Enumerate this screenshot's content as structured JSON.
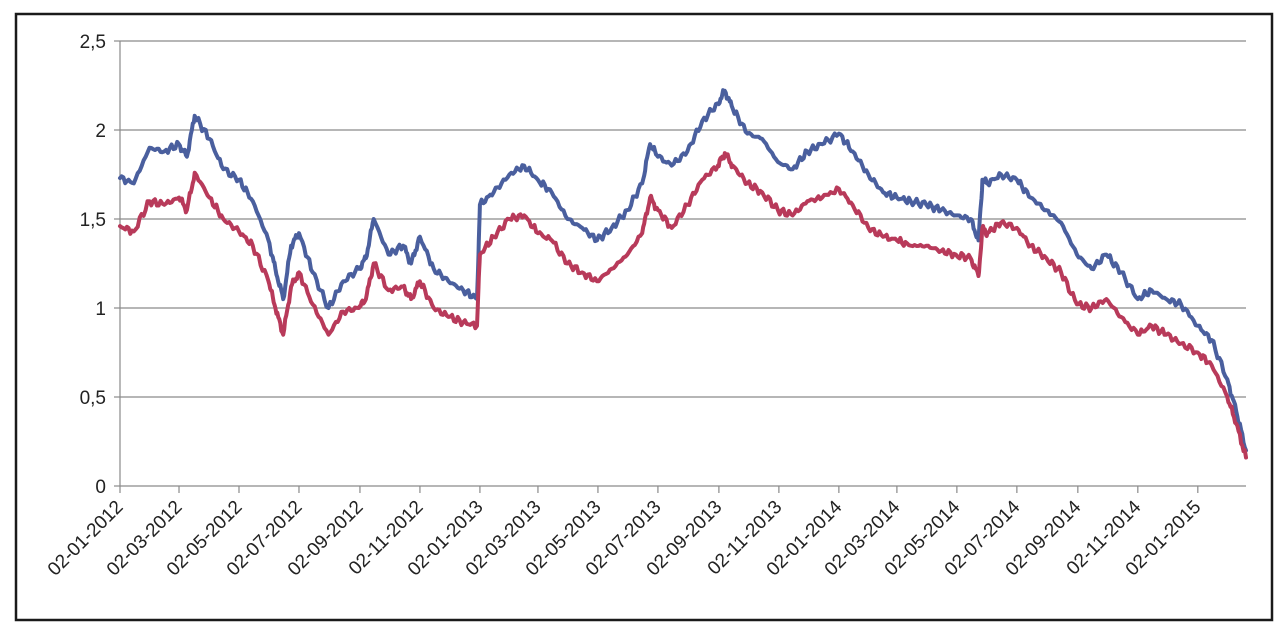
{
  "chart_data": {
    "type": "line",
    "title": "",
    "xlabel": "",
    "ylabel": "",
    "x_tick_labels": [
      "02-01-2012",
      "02-03-2012",
      "02-05-2012",
      "02-07-2012",
      "02-09-2012",
      "02-11-2012",
      "02-01-2013",
      "02-03-2013",
      "02-05-2013",
      "02-07-2013",
      "02-09-2013",
      "02-11-2013",
      "02-01-2014",
      "02-03-2014",
      "02-05-2014",
      "02-07-2014",
      "02-09-2014",
      "02-11-2014",
      "02-01-2015"
    ],
    "y_tick_labels": [
      "0",
      "0,5",
      "1",
      "1,5",
      "2",
      "2,5"
    ],
    "y_ticks": [
      0,
      0.5,
      1,
      1.5,
      2,
      2.5
    ],
    "ylim": [
      0,
      2.5
    ],
    "xlim": [
      "2012-01-02",
      "2015-02-20"
    ],
    "grid": "horizontal",
    "legend": "none",
    "series": [
      {
        "color": "#4a5f9e",
        "x": [
          "2012-01-02",
          "2012-01-16",
          "2012-02-01",
          "2012-02-16",
          "2012-03-02",
          "2012-03-10",
          "2012-03-18",
          "2012-04-02",
          "2012-04-16",
          "2012-05-02",
          "2012-05-16",
          "2012-06-01",
          "2012-06-08",
          "2012-06-16",
          "2012-06-24",
          "2012-07-02",
          "2012-07-16",
          "2012-08-01",
          "2012-08-16",
          "2012-09-01",
          "2012-09-08",
          "2012-09-16",
          "2012-10-01",
          "2012-10-16",
          "2012-10-24",
          "2012-11-02",
          "2012-11-16",
          "2012-12-01",
          "2012-12-16",
          "2012-12-30",
          "2013-01-02",
          "2013-01-16",
          "2013-02-01",
          "2013-02-16",
          "2013-03-02",
          "2013-03-16",
          "2013-04-01",
          "2013-04-16",
          "2013-05-01",
          "2013-05-16",
          "2013-06-01",
          "2013-06-16",
          "2013-06-24",
          "2013-07-02",
          "2013-07-16",
          "2013-08-01",
          "2013-08-16",
          "2013-09-01",
          "2013-09-08",
          "2013-09-16",
          "2013-10-01",
          "2013-10-16",
          "2013-11-01",
          "2013-11-16",
          "2013-12-01",
          "2013-12-16",
          "2014-01-02",
          "2014-01-16",
          "2014-02-01",
          "2014-02-16",
          "2014-03-02",
          "2014-03-16",
          "2014-04-01",
          "2014-04-16",
          "2014-05-01",
          "2014-05-16",
          "2014-05-24",
          "2014-05-28",
          "2014-06-02",
          "2014-06-16",
          "2014-07-02",
          "2014-07-16",
          "2014-08-01",
          "2014-08-16",
          "2014-09-01",
          "2014-09-16",
          "2014-10-01",
          "2014-10-16",
          "2014-11-02",
          "2014-11-16",
          "2014-12-01",
          "2014-12-16",
          "2015-01-02",
          "2015-01-16",
          "2015-02-01",
          "2015-02-10",
          "2015-02-20"
        ],
        "values": [
          1.73,
          1.7,
          1.9,
          1.88,
          1.92,
          1.85,
          2.08,
          1.95,
          1.78,
          1.72,
          1.6,
          1.38,
          1.22,
          1.05,
          1.35,
          1.42,
          1.2,
          1.0,
          1.15,
          1.22,
          1.28,
          1.5,
          1.3,
          1.35,
          1.25,
          1.4,
          1.22,
          1.15,
          1.1,
          1.05,
          1.58,
          1.65,
          1.75,
          1.8,
          1.72,
          1.65,
          1.5,
          1.45,
          1.38,
          1.45,
          1.55,
          1.7,
          1.92,
          1.85,
          1.8,
          1.88,
          2.05,
          2.15,
          2.22,
          2.12,
          1.98,
          1.95,
          1.82,
          1.78,
          1.88,
          1.92,
          1.98,
          1.88,
          1.75,
          1.65,
          1.62,
          1.6,
          1.58,
          1.55,
          1.52,
          1.5,
          1.38,
          1.72,
          1.7,
          1.75,
          1.72,
          1.62,
          1.55,
          1.48,
          1.3,
          1.22,
          1.3,
          1.2,
          1.05,
          1.1,
          1.05,
          1.02,
          0.9,
          0.82,
          0.6,
          0.42,
          0.2
        ]
      },
      {
        "color": "#b83a5a",
        "x": [
          "2012-01-02",
          "2012-01-16",
          "2012-02-01",
          "2012-02-16",
          "2012-03-02",
          "2012-03-10",
          "2012-03-18",
          "2012-04-02",
          "2012-04-16",
          "2012-05-02",
          "2012-05-16",
          "2012-06-01",
          "2012-06-08",
          "2012-06-16",
          "2012-06-24",
          "2012-07-02",
          "2012-07-16",
          "2012-08-01",
          "2012-08-16",
          "2012-09-01",
          "2012-09-08",
          "2012-09-16",
          "2012-10-01",
          "2012-10-16",
          "2012-10-24",
          "2012-11-02",
          "2012-11-16",
          "2012-12-01",
          "2012-12-16",
          "2012-12-30",
          "2013-01-02",
          "2013-01-16",
          "2013-02-01",
          "2013-02-16",
          "2013-03-02",
          "2013-03-16",
          "2013-04-01",
          "2013-04-16",
          "2013-05-01",
          "2013-05-16",
          "2013-06-01",
          "2013-06-16",
          "2013-06-24",
          "2013-07-02",
          "2013-07-16",
          "2013-08-01",
          "2013-08-16",
          "2013-09-01",
          "2013-09-08",
          "2013-09-16",
          "2013-10-01",
          "2013-10-16",
          "2013-11-01",
          "2013-11-16",
          "2013-12-01",
          "2013-12-16",
          "2014-01-02",
          "2014-01-16",
          "2014-02-01",
          "2014-02-16",
          "2014-03-02",
          "2014-03-16",
          "2014-04-01",
          "2014-04-16",
          "2014-05-01",
          "2014-05-16",
          "2014-05-24",
          "2014-05-28",
          "2014-06-02",
          "2014-06-16",
          "2014-07-02",
          "2014-07-16",
          "2014-08-01",
          "2014-08-16",
          "2014-09-01",
          "2014-09-16",
          "2014-10-01",
          "2014-10-16",
          "2014-11-02",
          "2014-11-16",
          "2014-12-01",
          "2014-12-16",
          "2015-01-02",
          "2015-01-16",
          "2015-02-01",
          "2015-02-10",
          "2015-02-20"
        ],
        "values": [
          1.46,
          1.43,
          1.6,
          1.58,
          1.62,
          1.55,
          1.76,
          1.62,
          1.5,
          1.43,
          1.35,
          1.15,
          1.0,
          0.85,
          1.12,
          1.2,
          1.02,
          0.85,
          0.98,
          1.0,
          1.05,
          1.25,
          1.1,
          1.12,
          1.05,
          1.15,
          1.0,
          0.95,
          0.92,
          0.9,
          1.3,
          1.4,
          1.5,
          1.52,
          1.42,
          1.38,
          1.25,
          1.2,
          1.15,
          1.22,
          1.3,
          1.42,
          1.62,
          1.55,
          1.45,
          1.58,
          1.72,
          1.8,
          1.87,
          1.8,
          1.7,
          1.65,
          1.55,
          1.52,
          1.6,
          1.62,
          1.67,
          1.58,
          1.45,
          1.4,
          1.38,
          1.35,
          1.35,
          1.32,
          1.3,
          1.28,
          1.18,
          1.45,
          1.42,
          1.48,
          1.45,
          1.35,
          1.28,
          1.2,
          1.02,
          1.0,
          1.05,
          0.95,
          0.85,
          0.9,
          0.85,
          0.8,
          0.75,
          0.68,
          0.5,
          0.35,
          0.16
        ]
      }
    ]
  }
}
